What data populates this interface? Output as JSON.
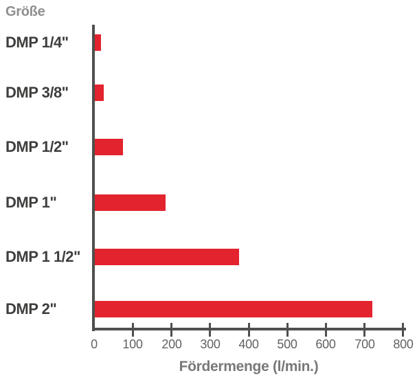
{
  "chart_data": {
    "type": "bar",
    "orientation": "horizontal",
    "y_axis_title": "Größe",
    "xlabel": "Fördermenge (l/min.)",
    "categories": [
      "DMP 1/4\"",
      "DMP 3/8\"",
      "DMP 1/2\"",
      "DMP 1\"",
      "DMP 1 1/2\"",
      "DMP 2\""
    ],
    "values": [
      17,
      25,
      75,
      185,
      375,
      720
    ],
    "xlim": [
      0,
      800
    ],
    "x_ticks": [
      0,
      100,
      200,
      300,
      400,
      500,
      600,
      700,
      800
    ],
    "grid": false,
    "legend": false,
    "bar_color": "#e3232d",
    "axis_color": "#4f4f4e",
    "category_label_color": "#3e3e3d",
    "y_axis_title_color": "#8f8f8f",
    "tick_label_color": "#626261",
    "xlabel_color": "#787877"
  }
}
